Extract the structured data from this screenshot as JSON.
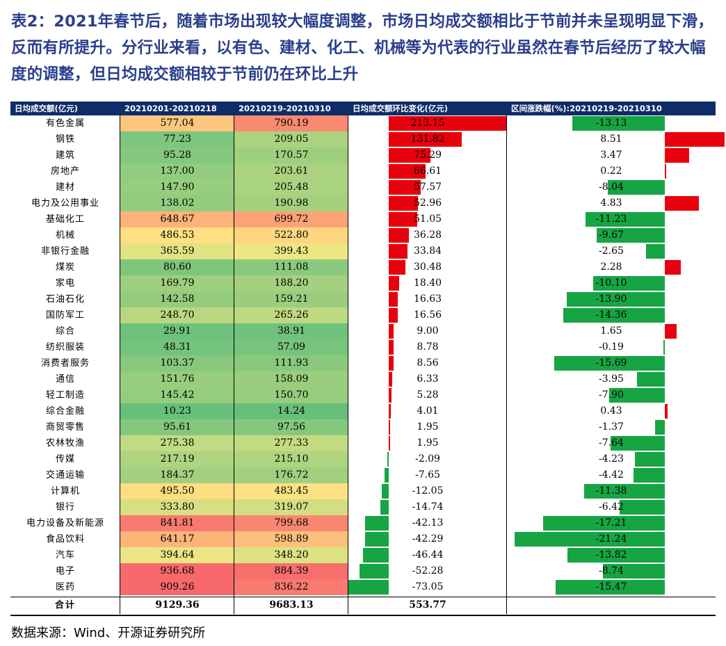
{
  "title": "表2：2021年春节后，随着市场出现较大幅度调整，市场日均成交额相比于节前并未呈现明显下滑，反而有所提升。分行业来看，以有色、建材、化工、机械等为代表的行业虽然在春节后经历了较大幅度的调整，但日均成交额相较于节前仍在环比上升",
  "headers": [
    "日均成交额(亿元)",
    "20210201-20210218",
    "20210219-20210310",
    "日均成交额环比变化(亿元)",
    "区间涨跌幅(%):20210219-20210310"
  ],
  "colors": {
    "header_bg": "#0e2c67",
    "title": "#2a3e8c",
    "bar_up": "#e8000c",
    "bar_down": "#16a543"
  },
  "rows": [
    {
      "name": "有色金属",
      "v1": "577.04",
      "v2": "790.19",
      "change": "213.15",
      "pct": "-13.13"
    },
    {
      "name": "钢铁",
      "v1": "77.23",
      "v2": "209.05",
      "change": "131.82",
      "pct": "8.51"
    },
    {
      "name": "建筑",
      "v1": "95.28",
      "v2": "170.57",
      "change": "75.29",
      "pct": "3.47"
    },
    {
      "name": "房地产",
      "v1": "137.00",
      "v2": "203.61",
      "change": "66.61",
      "pct": "0.22"
    },
    {
      "name": "建材",
      "v1": "147.90",
      "v2": "205.48",
      "change": "57.57",
      "pct": "-8.04"
    },
    {
      "name": "电力及公用事业",
      "v1": "138.02",
      "v2": "190.98",
      "change": "52.96",
      "pct": "4.83"
    },
    {
      "name": "基础化工",
      "v1": "648.67",
      "v2": "699.72",
      "change": "51.05",
      "pct": "-11.23"
    },
    {
      "name": "机械",
      "v1": "486.53",
      "v2": "522.80",
      "change": "36.28",
      "pct": "-9.67"
    },
    {
      "name": "非银行金融",
      "v1": "365.59",
      "v2": "399.43",
      "change": "33.84",
      "pct": "-2.65"
    },
    {
      "name": "煤炭",
      "v1": "80.60",
      "v2": "111.08",
      "change": "30.48",
      "pct": "2.28"
    },
    {
      "name": "家电",
      "v1": "169.79",
      "v2": "188.20",
      "change": "18.40",
      "pct": "-10.10"
    },
    {
      "name": "石油石化",
      "v1": "142.58",
      "v2": "159.21",
      "change": "16.63",
      "pct": "-13.90"
    },
    {
      "name": "国防军工",
      "v1": "248.70",
      "v2": "265.26",
      "change": "16.56",
      "pct": "-14.36"
    },
    {
      "name": "综合",
      "v1": "29.91",
      "v2": "38.91",
      "change": "9.00",
      "pct": "1.65"
    },
    {
      "name": "纺织服装",
      "v1": "48.31",
      "v2": "57.09",
      "change": "8.78",
      "pct": "-0.19"
    },
    {
      "name": "消费者服务",
      "v1": "103.37",
      "v2": "111.93",
      "change": "8.56",
      "pct": "-15.69"
    },
    {
      "name": "通信",
      "v1": "151.76",
      "v2": "158.09",
      "change": "6.33",
      "pct": "-3.95"
    },
    {
      "name": "轻工制造",
      "v1": "145.42",
      "v2": "150.70",
      "change": "5.28",
      "pct": "-7.90"
    },
    {
      "name": "综合金融",
      "v1": "10.23",
      "v2": "14.24",
      "change": "4.01",
      "pct": "0.43"
    },
    {
      "name": "商贸零售",
      "v1": "95.61",
      "v2": "97.56",
      "change": "1.95",
      "pct": "-1.37"
    },
    {
      "name": "农林牧渔",
      "v1": "275.38",
      "v2": "277.33",
      "change": "1.95",
      "pct": "-7.64"
    },
    {
      "name": "传媒",
      "v1": "217.19",
      "v2": "215.10",
      "change": "-2.09",
      "pct": "-4.23"
    },
    {
      "name": "交通运输",
      "v1": "184.37",
      "v2": "176.72",
      "change": "-7.65",
      "pct": "-4.42"
    },
    {
      "name": "计算机",
      "v1": "495.50",
      "v2": "483.45",
      "change": "-12.05",
      "pct": "-11.38"
    },
    {
      "name": "银行",
      "v1": "333.80",
      "v2": "319.07",
      "change": "-14.74",
      "pct": "-6.42"
    },
    {
      "name": "电力设备及新能源",
      "v1": "841.81",
      "v2": "799.68",
      "change": "-42.13",
      "pct": "-17.21"
    },
    {
      "name": "食品饮料",
      "v1": "641.17",
      "v2": "598.89",
      "change": "-42.29",
      "pct": "-21.24"
    },
    {
      "name": "汽车",
      "v1": "394.64",
      "v2": "348.20",
      "change": "-46.44",
      "pct": "-13.82"
    },
    {
      "name": "电子",
      "v1": "936.68",
      "v2": "884.39",
      "change": "-52.28",
      "pct": "-8.74"
    },
    {
      "name": "医药",
      "v1": "909.26",
      "v2": "836.22",
      "change": "-73.05",
      "pct": "-15.47"
    }
  ],
  "total": {
    "name": "合计",
    "v1": "9129.36",
    "v2": "9683.13",
    "change": "553.77",
    "pct": ""
  },
  "source": "数据来源：Wind、开源证券研究所"
}
